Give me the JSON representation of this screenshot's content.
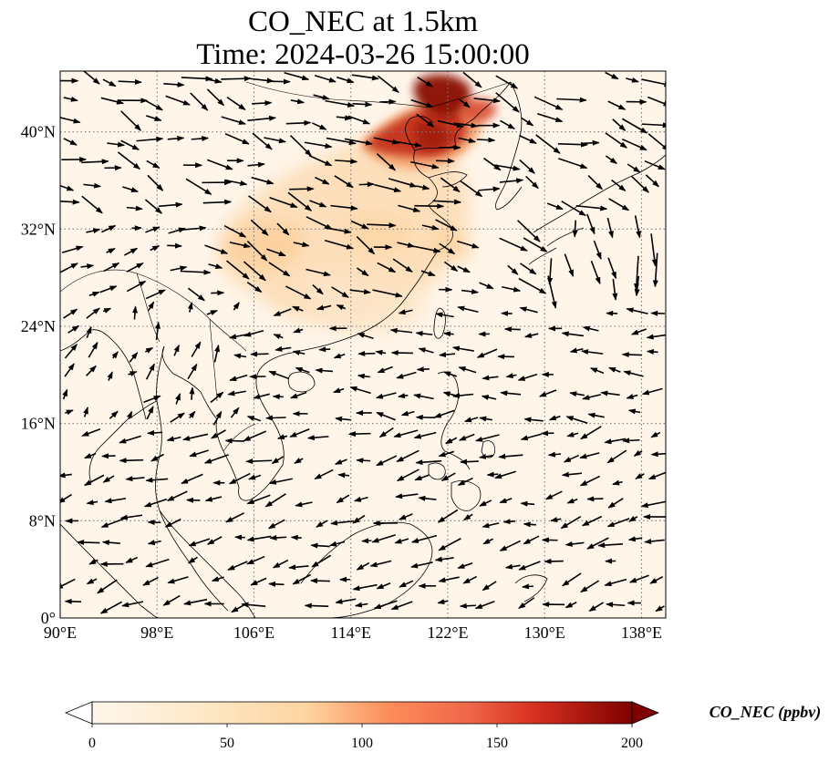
{
  "title": {
    "line1": "CO_NEC at 1.5km",
    "line2": "Time: 2024-03-26 15:00:00"
  },
  "map": {
    "projection": "PlateCarree",
    "lon_range": [
      90,
      140
    ],
    "lat_range": [
      0,
      45
    ],
    "gridlines": "dotted",
    "lon_ticks": [
      {
        "value": 90,
        "label": "90°E"
      },
      {
        "value": 98,
        "label": "98°E"
      },
      {
        "value": 106,
        "label": "106°E"
      },
      {
        "value": 114,
        "label": "114°E"
      },
      {
        "value": 122,
        "label": "122°E"
      },
      {
        "value": 130,
        "label": "130°E"
      },
      {
        "value": 138,
        "label": "138°E"
      }
    ],
    "lat_ticks": [
      {
        "value": 0,
        "label": "0°"
      },
      {
        "value": 8,
        "label": "8°N"
      },
      {
        "value": 16,
        "label": "16°N"
      },
      {
        "value": 24,
        "label": "24°N"
      },
      {
        "value": 32,
        "label": "32°N"
      },
      {
        "value": 40,
        "label": "40°N"
      }
    ],
    "colormap": "OrRd",
    "colors": {
      "background": "#fff5e9",
      "coastline": "#000000",
      "grid": "#7a7a7a",
      "wind_arrow": "#000000"
    }
  },
  "colorbar": {
    "label": "CO_NEC (ppbv)",
    "min": 0,
    "max": 200,
    "extend": "both",
    "ticks": [
      {
        "value": 0,
        "label": "0"
      },
      {
        "value": 50,
        "label": "50"
      },
      {
        "value": 100,
        "label": "100"
      },
      {
        "value": 150,
        "label": "150"
      },
      {
        "value": 200,
        "label": "200"
      }
    ]
  }
}
